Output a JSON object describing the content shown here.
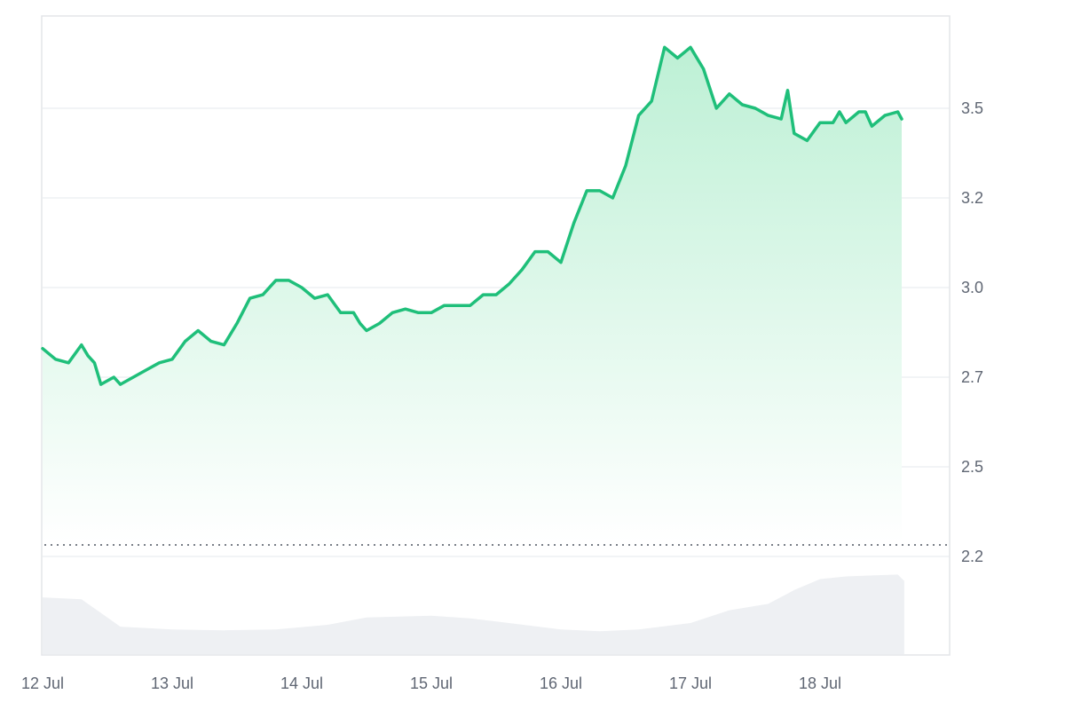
{
  "chart_data": {
    "type": "area",
    "title": "",
    "xlabel": "",
    "ylabel": "",
    "x_ticks": [
      "12 Jul",
      "13 Jul",
      "14 Jul",
      "15 Jul",
      "16 Jul",
      "17 Jul",
      "18 Jul"
    ],
    "y_ticks": [
      "2.2",
      "2.5",
      "2.7",
      "3.0",
      "3.2",
      "3.5"
    ],
    "y_tick_values": [
      2.2,
      2.45,
      2.7,
      2.95,
      3.2,
      3.45
    ],
    "ylim": [
      2.2,
      3.7
    ],
    "x_range_days": [
      0,
      6.65
    ],
    "grid": true,
    "baseline_value": 2.24,
    "line_color": "#1fbf7a",
    "fill_color_top": "#bdf0d5",
    "fill_color_bottom": "#ffffff",
    "volume_color": "#eef0f3",
    "series": [
      {
        "x": [
          0.0,
          0.1,
          0.2,
          0.3,
          0.35,
          0.4,
          0.45,
          0.5,
          0.55,
          0.6,
          0.7,
          0.8,
          0.9,
          1.0,
          1.1,
          1.2,
          1.3,
          1.4,
          1.5,
          1.6,
          1.7,
          1.8,
          1.9,
          2.0,
          2.1,
          2.2,
          2.3,
          2.4,
          2.45,
          2.5,
          2.6,
          2.7,
          2.8,
          2.9,
          3.0,
          3.1,
          3.2,
          3.3,
          3.4,
          3.5,
          3.6,
          3.7,
          3.8,
          3.9,
          4.0,
          4.1,
          4.2,
          4.3,
          4.4,
          4.5,
          4.6,
          4.7,
          4.8,
          4.9,
          5.0,
          5.1,
          5.2,
          5.3,
          5.4,
          5.5,
          5.6,
          5.7,
          5.75,
          5.8,
          5.9,
          6.0,
          6.1,
          6.15,
          6.2,
          6.3,
          6.35,
          6.4,
          6.5,
          6.6,
          6.63
        ],
        "y": [
          2.78,
          2.75,
          2.74,
          2.79,
          2.76,
          2.74,
          2.68,
          2.69,
          2.7,
          2.68,
          2.7,
          2.72,
          2.74,
          2.75,
          2.8,
          2.83,
          2.8,
          2.79,
          2.85,
          2.92,
          2.93,
          2.97,
          2.97,
          2.95,
          2.92,
          2.93,
          2.88,
          2.88,
          2.85,
          2.83,
          2.85,
          2.88,
          2.89,
          2.88,
          2.88,
          2.9,
          2.9,
          2.9,
          2.93,
          2.93,
          2.96,
          3.0,
          3.05,
          3.05,
          3.02,
          3.13,
          3.22,
          3.22,
          3.2,
          3.29,
          3.43,
          3.47,
          3.62,
          3.59,
          3.62,
          3.56,
          3.45,
          3.49,
          3.46,
          3.45,
          3.43,
          3.42,
          3.5,
          3.38,
          3.36,
          3.41,
          3.41,
          3.44,
          3.41,
          3.44,
          3.44,
          3.4,
          3.43,
          3.44,
          3.42
        ],
        "name": ""
      }
    ],
    "volume": {
      "x": [
        0.0,
        0.3,
        0.5,
        0.6,
        1.0,
        1.4,
        1.8,
        2.2,
        2.5,
        3.0,
        3.3,
        3.6,
        4.0,
        4.3,
        4.6,
        5.0,
        5.3,
        5.6,
        5.8,
        6.0,
        6.2,
        6.4,
        6.6,
        6.65
      ],
      "y": [
        0.62,
        0.6,
        0.4,
        0.3,
        0.27,
        0.26,
        0.27,
        0.32,
        0.4,
        0.42,
        0.39,
        0.34,
        0.27,
        0.25,
        0.27,
        0.34,
        0.48,
        0.55,
        0.7,
        0.82,
        0.85,
        0.86,
        0.87,
        0.8
      ]
    }
  }
}
